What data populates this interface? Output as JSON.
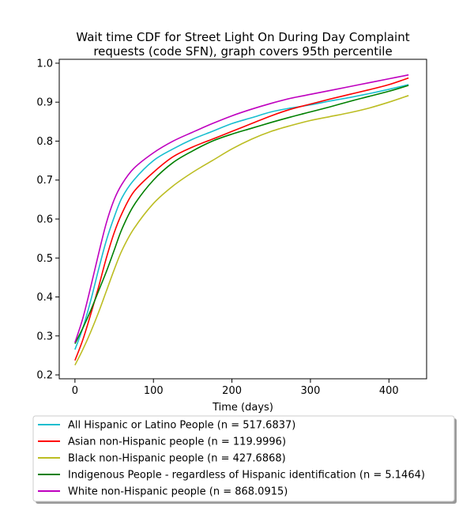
{
  "chart_data": {
    "type": "line",
    "title_line1": "Wait time CDF for Street Light On During Day Complaint",
    "title_line2": "requests (code SFN), graph covers 95th percentile",
    "xlabel": "Time (days)",
    "ylabel": "",
    "xlim": [
      -20,
      448
    ],
    "ylim": [
      0.19,
      1.01
    ],
    "xticks": [
      0,
      100,
      200,
      300,
      400
    ],
    "xtick_labels": [
      "0",
      "100",
      "200",
      "300",
      "400"
    ],
    "yticks": [
      0.2,
      0.3,
      0.4,
      0.5,
      0.6,
      0.7,
      0.8,
      0.9,
      1.0
    ],
    "ytick_labels": [
      "0.2",
      "0.3",
      "0.4",
      "0.5",
      "0.6",
      "0.7",
      "0.8",
      "0.9",
      "1.0"
    ],
    "grid": false,
    "legend_position": "bottom",
    "series": [
      {
        "name": "All Hispanic or Latino People (n = 517.6837)",
        "color": "#17becf",
        "points": [
          [
            0,
            0.265
          ],
          [
            10,
            0.32
          ],
          [
            20,
            0.39
          ],
          [
            30,
            0.47
          ],
          [
            40,
            0.545
          ],
          [
            50,
            0.605
          ],
          [
            60,
            0.655
          ],
          [
            75,
            0.7
          ],
          [
            100,
            0.75
          ],
          [
            125,
            0.78
          ],
          [
            150,
            0.805
          ],
          [
            175,
            0.825
          ],
          [
            200,
            0.845
          ],
          [
            225,
            0.86
          ],
          [
            250,
            0.875
          ],
          [
            275,
            0.885
          ],
          [
            300,
            0.893
          ],
          [
            325,
            0.903
          ],
          [
            350,
            0.912
          ],
          [
            375,
            0.922
          ],
          [
            400,
            0.933
          ],
          [
            425,
            0.945
          ]
        ]
      },
      {
        "name": "Asian non-Hispanic people (n = 119.9996)",
        "color": "#ff0000",
        "points": [
          [
            0,
            0.237
          ],
          [
            10,
            0.29
          ],
          [
            20,
            0.355
          ],
          [
            30,
            0.425
          ],
          [
            40,
            0.5
          ],
          [
            50,
            0.565
          ],
          [
            60,
            0.615
          ],
          [
            75,
            0.67
          ],
          [
            100,
            0.72
          ],
          [
            125,
            0.76
          ],
          [
            150,
            0.785
          ],
          [
            175,
            0.805
          ],
          [
            200,
            0.825
          ],
          [
            225,
            0.845
          ],
          [
            250,
            0.865
          ],
          [
            275,
            0.882
          ],
          [
            300,
            0.895
          ],
          [
            325,
            0.908
          ],
          [
            350,
            0.92
          ],
          [
            375,
            0.932
          ],
          [
            400,
            0.945
          ],
          [
            425,
            0.962
          ]
        ]
      },
      {
        "name": "Black non-Hispanic people (n = 427.6868)",
        "color": "#bcbd22",
        "points": [
          [
            0,
            0.225
          ],
          [
            10,
            0.265
          ],
          [
            20,
            0.31
          ],
          [
            30,
            0.36
          ],
          [
            40,
            0.415
          ],
          [
            50,
            0.47
          ],
          [
            60,
            0.52
          ],
          [
            75,
            0.575
          ],
          [
            100,
            0.64
          ],
          [
            125,
            0.685
          ],
          [
            150,
            0.72
          ],
          [
            175,
            0.75
          ],
          [
            200,
            0.78
          ],
          [
            225,
            0.805
          ],
          [
            250,
            0.825
          ],
          [
            275,
            0.84
          ],
          [
            300,
            0.853
          ],
          [
            325,
            0.863
          ],
          [
            350,
            0.873
          ],
          [
            375,
            0.885
          ],
          [
            400,
            0.9
          ],
          [
            425,
            0.917
          ]
        ]
      },
      {
        "name": "Indigenous People - regardless of Hispanic identification (n = 5.1464)",
        "color": "#008000",
        "points": [
          [
            0,
            0.28
          ],
          [
            10,
            0.32
          ],
          [
            20,
            0.365
          ],
          [
            30,
            0.415
          ],
          [
            40,
            0.465
          ],
          [
            50,
            0.52
          ],
          [
            60,
            0.575
          ],
          [
            75,
            0.635
          ],
          [
            100,
            0.7
          ],
          [
            125,
            0.745
          ],
          [
            150,
            0.775
          ],
          [
            175,
            0.8
          ],
          [
            200,
            0.818
          ],
          [
            225,
            0.833
          ],
          [
            250,
            0.848
          ],
          [
            275,
            0.862
          ],
          [
            300,
            0.875
          ],
          [
            325,
            0.888
          ],
          [
            350,
            0.902
          ],
          [
            375,
            0.915
          ],
          [
            400,
            0.928
          ],
          [
            425,
            0.943
          ]
        ]
      },
      {
        "name": "White non-Hispanic people (n = 868.0915)",
        "color": "#bf00bf",
        "points": [
          [
            0,
            0.283
          ],
          [
            10,
            0.345
          ],
          [
            20,
            0.425
          ],
          [
            30,
            0.51
          ],
          [
            40,
            0.59
          ],
          [
            50,
            0.65
          ],
          [
            60,
            0.69
          ],
          [
            75,
            0.73
          ],
          [
            100,
            0.77
          ],
          [
            125,
            0.8
          ],
          [
            150,
            0.823
          ],
          [
            175,
            0.845
          ],
          [
            200,
            0.865
          ],
          [
            225,
            0.882
          ],
          [
            250,
            0.897
          ],
          [
            275,
            0.91
          ],
          [
            300,
            0.92
          ],
          [
            325,
            0.93
          ],
          [
            350,
            0.94
          ],
          [
            375,
            0.95
          ],
          [
            400,
            0.96
          ],
          [
            425,
            0.97
          ]
        ]
      }
    ]
  }
}
